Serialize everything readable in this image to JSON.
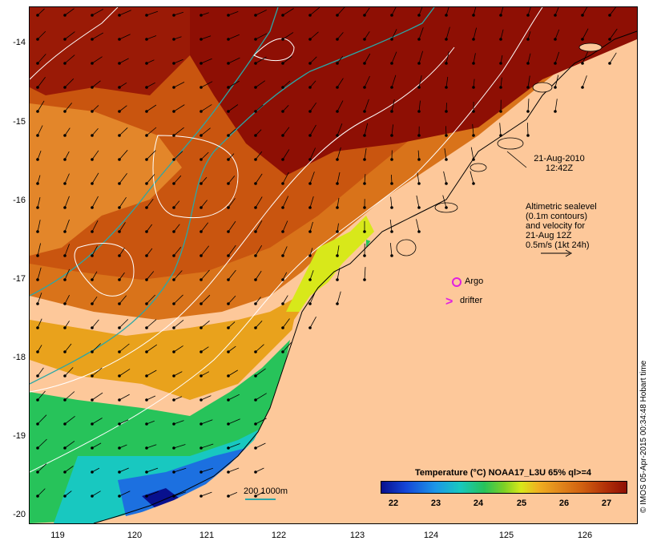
{
  "map": {
    "lat_ticks": [
      "-14",
      "-15",
      "-16",
      "-17",
      "-18",
      "-19",
      "-20"
    ],
    "lon_ticks": [
      "119",
      "120",
      "121",
      "122",
      "123",
      "124",
      "125",
      "126"
    ],
    "date_line1": "21-Aug-2010",
    "date_line2": "12:42Z",
    "altimetry_note": [
      "Altimetric sealevel",
      "(0.1m contours)",
      "and velocity for",
      "21-Aug 12Z",
      "0.5m/s (1kt 24h)"
    ],
    "argo_label": "Argo",
    "drifter_label": "drifter",
    "depth_scale_label": "200  1000m",
    "credit": "© IMOS 05-Apr-2015 00:34:48 Hobart time",
    "colors": {
      "land": "#fdc89a",
      "warm": "#8e0f04",
      "bathymetry": "#2aa7a7",
      "markers": "#e020e0"
    }
  },
  "colorbar": {
    "title": "Temperature (°C) NOAA17_L3U 65% ql>=4",
    "ticks": [
      "22",
      "23",
      "24",
      "25",
      "26",
      "27"
    ]
  }
}
